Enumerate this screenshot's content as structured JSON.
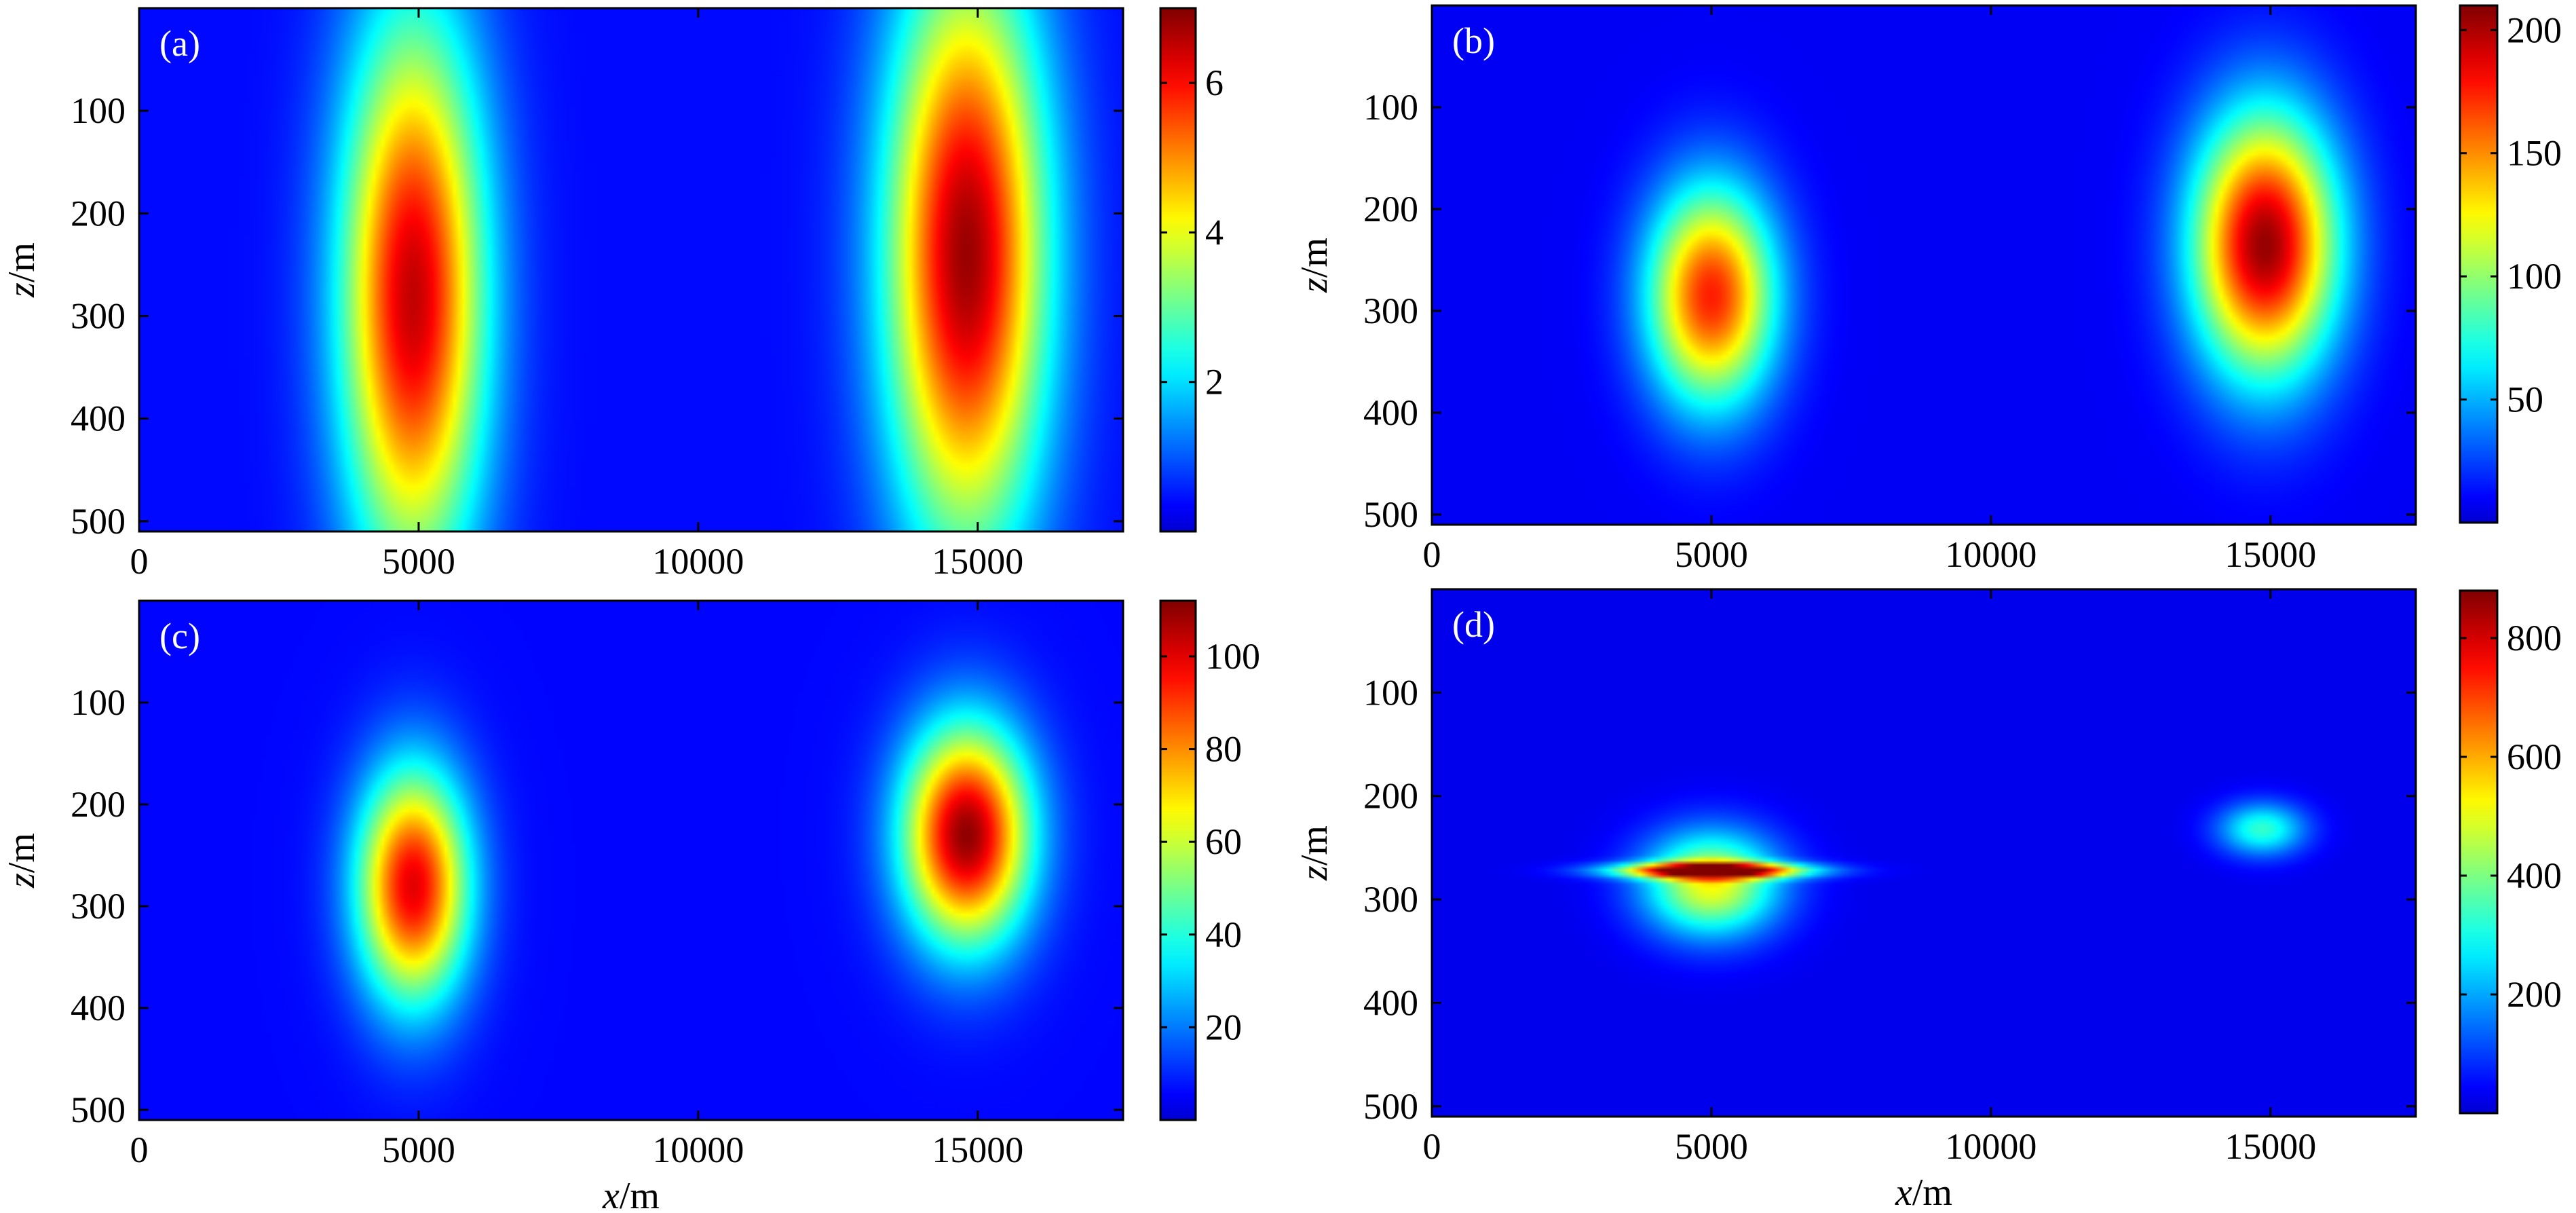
{
  "chart_data": [
    {
      "type": "heatmap",
      "panel_label": "(a)",
      "ylabel": "z/m",
      "xlabel": "",
      "xlim": [
        0,
        17600
      ],
      "ylim": [
        0,
        510
      ],
      "x_ticks": [
        0,
        5000,
        10000,
        15000
      ],
      "y_ticks": [
        100,
        200,
        300,
        400,
        500
      ],
      "colorbar": {
        "min": 0,
        "max": 7,
        "ticks": [
          2,
          4,
          6
        ]
      },
      "anomalies": [
        {
          "x": 4900,
          "z": 280,
          "sx": 900,
          "sz": 190,
          "peak": 6.5
        },
        {
          "x": 14800,
          "z": 240,
          "sx": 1000,
          "sz": 200,
          "peak": 6.8
        }
      ],
      "background": 0.4
    },
    {
      "type": "heatmap",
      "panel_label": "(b)",
      "ylabel": "z/m",
      "xlabel": "",
      "xlim": [
        0,
        17600
      ],
      "ylim": [
        0,
        510
      ],
      "x_ticks": [
        0,
        5000,
        10000,
        15000
      ],
      "y_ticks": [
        100,
        200,
        300,
        400,
        500
      ],
      "colorbar": {
        "min": 0,
        "max": 210,
        "ticks": [
          50,
          100,
          150,
          200
        ]
      },
      "anomalies": [
        {
          "x": 5000,
          "z": 285,
          "sx": 800,
          "sz": 75,
          "peak": 175
        },
        {
          "x": 14900,
          "z": 235,
          "sx": 900,
          "sz": 90,
          "peak": 205
        }
      ],
      "background": 8
    },
    {
      "type": "heatmap",
      "panel_label": "(c)",
      "ylabel": "z/m",
      "xlabel": "x/m",
      "xlim": [
        0,
        17600
      ],
      "ylim": [
        0,
        510
      ],
      "x_ticks": [
        0,
        5000,
        10000,
        15000
      ],
      "y_ticks": [
        100,
        200,
        300,
        400,
        500
      ],
      "colorbar": {
        "min": 0,
        "max": 112,
        "ticks": [
          20,
          40,
          60,
          80,
          100
        ]
      },
      "anomalies": [
        {
          "x": 4900,
          "z": 280,
          "sx": 700,
          "sz": 80,
          "peak": 100
        },
        {
          "x": 14800,
          "z": 230,
          "sx": 800,
          "sz": 75,
          "peak": 110
        }
      ],
      "background": 6
    },
    {
      "type": "heatmap",
      "panel_label": "(d)",
      "ylabel": "z/m",
      "xlabel": "x/m",
      "xlim": [
        0,
        17600
      ],
      "ylim": [
        0,
        510
      ],
      "x_ticks": [
        0,
        5000,
        10000,
        15000
      ],
      "y_ticks": [
        100,
        200,
        300,
        400,
        500
      ],
      "colorbar": {
        "min": 0,
        "max": 880,
        "ticks": [
          200,
          400,
          600,
          800
        ]
      },
      "anomalies": [
        {
          "x": 5000,
          "z": 285,
          "sx": 850,
          "sz": 35,
          "peak": 520
        },
        {
          "x": 5000,
          "z": 272,
          "sx": 1150,
          "sz": 5,
          "peak": 860
        },
        {
          "x": 14850,
          "z": 232,
          "sx": 550,
          "sz": 18,
          "peak": 330
        }
      ],
      "background": 25
    }
  ]
}
